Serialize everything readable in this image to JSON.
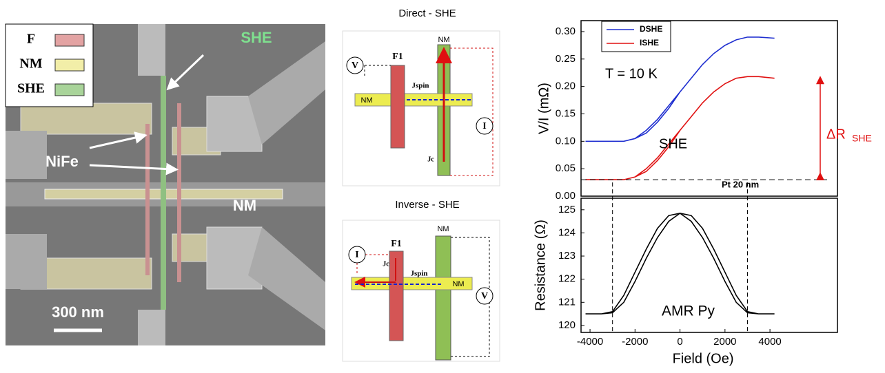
{
  "sem_image": {
    "legend": [
      {
        "label": "F",
        "color": "#e3a3a3"
      },
      {
        "label": "NM",
        "color": "#f2eea8"
      },
      {
        "label": "SHE",
        "color": "#a9d49a"
      }
    ],
    "she_label": "SHE",
    "nife_label": "NiFe",
    "nm_label": "NM",
    "scale_label": "300 nm"
  },
  "diagrams": [
    {
      "title": "Direct - SHE",
      "v": "V",
      "f1": "F1",
      "nm_top": "NM",
      "jspin": "Jspin",
      "nm_left": "NM",
      "i": "I",
      "jc": "Jc"
    },
    {
      "title": "Inverse - SHE",
      "nm_top": "NM",
      "f1": "F1",
      "i": "I",
      "jc": "Jc",
      "jspin": "Jspin",
      "nm_right": "NM",
      "v": "V"
    }
  ],
  "chart_data": [
    {
      "type": "line",
      "ylabel": "V/I (mΩ)",
      "xlim": [
        -4400,
        7000
      ],
      "ylim": [
        0,
        0.32
      ],
      "yticks": [
        {
          "value": 0,
          "label": "0.00"
        },
        0.05,
        {
          "value": 0.1,
          "label": "0.10"
        },
        0.15,
        {
          "value": 0.2,
          "label": "0.20"
        },
        0.25,
        {
          "value": 0.3,
          "label": "0.30"
        }
      ],
      "x": [
        -4200,
        -3500,
        -3000,
        -2500,
        -2000,
        -1500,
        -1000,
        -500,
        0,
        500,
        1000,
        1500,
        2000,
        2500,
        3000,
        3500,
        4200,
        3500,
        3000,
        2500,
        2000,
        1500,
        1000,
        500,
        0,
        -500,
        -1000,
        -1500,
        -2000,
        -2500,
        -3000,
        -3500,
        -4200
      ],
      "series": [
        {
          "name": "DSHE",
          "color": "#1f2fd0",
          "values": [
            0.1,
            0.1,
            0.1,
            0.1,
            0.105,
            0.12,
            0.14,
            0.165,
            0.19,
            0.215,
            0.24,
            0.26,
            0.275,
            0.285,
            0.29,
            0.29,
            0.288,
            0.29,
            0.29,
            0.285,
            0.275,
            0.26,
            0.24,
            0.215,
            0.19,
            0.16,
            0.135,
            0.115,
            0.105,
            0.1,
            0.1,
            0.1,
            0.1
          ]
        },
        {
          "name": "ISHE",
          "color": "#e01010",
          "values": [
            0.03,
            0.03,
            0.03,
            0.03,
            0.035,
            0.05,
            0.07,
            0.095,
            0.12,
            0.145,
            0.17,
            0.19,
            0.205,
            0.215,
            0.218,
            0.218,
            0.215,
            0.218,
            0.218,
            0.215,
            0.205,
            0.19,
            0.17,
            0.145,
            0.12,
            0.09,
            0.065,
            0.045,
            0.035,
            0.03,
            0.03,
            0.03,
            0.03
          ]
        }
      ],
      "ref_x": [
        -3000,
        3000
      ],
      "baseline": 0.03,
      "delta_top": 0.218,
      "annotations": {
        "temp": "T = 10 K",
        "she": "SHE",
        "thickness": "Pt 20 nm",
        "delta": "ΔR",
        "delta_sub": "SHE"
      }
    },
    {
      "type": "line",
      "ylabel": "Resistance (Ω)",
      "xlabel": "Field (Oe)",
      "xlim": [
        -4400,
        7000
      ],
      "ylim": [
        119.7,
        125.5
      ],
      "yticks": [
        120,
        121,
        122,
        123,
        124,
        125
      ],
      "xticks": [
        -4000,
        -2000,
        0,
        2000,
        4000
      ],
      "x": [
        -4200,
        -3500,
        -3000,
        -2500,
        -2000,
        -1500,
        -1000,
        -500,
        0,
        500,
        1000,
        1500,
        2000,
        2500,
        3000,
        3500,
        4200,
        3500,
        3000,
        2500,
        2000,
        1500,
        1000,
        500,
        0,
        -500,
        -1000,
        -1500,
        -2000,
        -2500,
        -3000,
        -3500,
        -4200
      ],
      "series": [
        {
          "name": "AMR",
          "color": "#000000",
          "values": [
            120.5,
            120.5,
            120.55,
            121.0,
            121.9,
            122.9,
            123.8,
            124.5,
            124.85,
            124.75,
            124.2,
            123.3,
            122.3,
            121.3,
            120.6,
            120.5,
            120.5,
            120.5,
            120.55,
            121.0,
            121.9,
            122.9,
            123.8,
            124.5,
            124.85,
            124.75,
            124.2,
            123.3,
            122.3,
            121.3,
            120.6,
            120.5,
            120.5
          ]
        }
      ],
      "annotations": {
        "amr": "AMR Py"
      }
    }
  ]
}
